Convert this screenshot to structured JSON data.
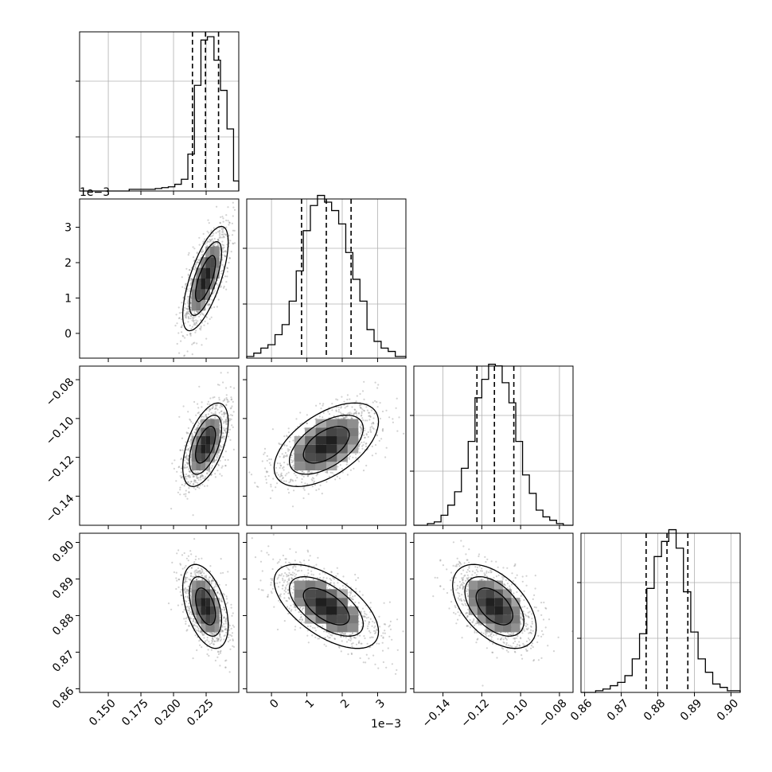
{
  "chart_data": {
    "type": "corner",
    "parameters": [
      {
        "ticks": [
          0.15,
          0.175,
          0.2,
          0.225
        ],
        "tick_labels": [
          "0.150",
          "0.175",
          "0.200",
          "0.225"
        ],
        "range": [
          0.128,
          0.25
        ],
        "quantiles": [
          0.2145,
          0.2245,
          0.2345
        ],
        "offset_text": ""
      },
      {
        "ticks": [
          0,
          1,
          2,
          3
        ],
        "tick_labels": [
          "0",
          "1",
          "2",
          "3"
        ],
        "range": [
          -0.7,
          3.8
        ],
        "quantiles": [
          0.85,
          1.55,
          2.25
        ],
        "offset_text": "1e−3"
      },
      {
        "ticks": [
          -0.14,
          -0.12,
          -0.1,
          -0.08
        ],
        "tick_labels": [
          "−0.14",
          "−0.12",
          "−0.10",
          "−0.08"
        ],
        "range": [
          -0.155,
          -0.073
        ],
        "quantiles": [
          -0.1225,
          -0.1135,
          -0.1035
        ],
        "offset_text": ""
      },
      {
        "ticks": [
          0.86,
          0.87,
          0.88,
          0.89,
          0.9
        ],
        "tick_labels": [
          "0.86",
          "0.87",
          "0.88",
          "0.89",
          "0.90"
        ],
        "range": [
          0.859,
          0.9025
        ],
        "quantiles": [
          0.8768,
          0.8825,
          0.8882
        ],
        "offset_text": ""
      }
    ],
    "histograms": [
      {
        "bins": [
          [
            0.128,
            0.132,
            0.0
          ],
          [
            0.132,
            0.137,
            0.0
          ],
          [
            0.137,
            0.142,
            0.0
          ],
          [
            0.142,
            0.147,
            0.0
          ],
          [
            0.147,
            0.152,
            0.0
          ],
          [
            0.152,
            0.156,
            0.0
          ],
          [
            0.156,
            0.161,
            0.0
          ],
          [
            0.161,
            0.166,
            0.0
          ],
          [
            0.166,
            0.171,
            0.01
          ],
          [
            0.171,
            0.176,
            0.01
          ],
          [
            0.176,
            0.181,
            0.01
          ],
          [
            0.181,
            0.186,
            0.01
          ],
          [
            0.186,
            0.191,
            0.015
          ],
          [
            0.191,
            0.196,
            0.02
          ],
          [
            0.196,
            0.201,
            0.025
          ],
          [
            0.201,
            0.206,
            0.04
          ],
          [
            0.206,
            0.211,
            0.07
          ],
          [
            0.211,
            0.216,
            0.22
          ],
          [
            0.216,
            0.221,
            0.63
          ],
          [
            0.221,
            0.226,
            0.9
          ],
          [
            0.226,
            0.231,
            0.92
          ],
          [
            0.231,
            0.236,
            0.78
          ],
          [
            0.236,
            0.241,
            0.6
          ],
          [
            0.241,
            0.246,
            0.37
          ],
          [
            0.246,
            0.25,
            0.06
          ]
        ]
      },
      {
        "bins": [
          [
            -0.7,
            -0.5,
            0.01
          ],
          [
            -0.5,
            -0.3,
            0.03
          ],
          [
            -0.3,
            -0.1,
            0.06
          ],
          [
            -0.1,
            0.1,
            0.08
          ],
          [
            0.1,
            0.3,
            0.14
          ],
          [
            0.3,
            0.5,
            0.2
          ],
          [
            0.5,
            0.7,
            0.34
          ],
          [
            0.7,
            0.9,
            0.52
          ],
          [
            0.9,
            1.1,
            0.76
          ],
          [
            1.1,
            1.3,
            0.91
          ],
          [
            1.3,
            1.5,
            0.97
          ],
          [
            1.5,
            1.7,
            0.93
          ],
          [
            1.7,
            1.9,
            0.88
          ],
          [
            1.9,
            2.1,
            0.8
          ],
          [
            2.1,
            2.3,
            0.63
          ],
          [
            2.3,
            2.5,
            0.47
          ],
          [
            2.5,
            2.7,
            0.34
          ],
          [
            2.7,
            2.9,
            0.17
          ],
          [
            2.9,
            3.1,
            0.1
          ],
          [
            3.1,
            3.3,
            0.06
          ],
          [
            3.3,
            3.5,
            0.04
          ],
          [
            3.5,
            3.8,
            0.01
          ]
        ]
      },
      {
        "bins": [
          [
            -0.155,
            -0.1515,
            0.0
          ],
          [
            -0.1515,
            -0.148,
            0.0
          ],
          [
            -0.148,
            -0.1445,
            0.01
          ],
          [
            -0.1445,
            -0.141,
            0.02
          ],
          [
            -0.141,
            -0.1375,
            0.06
          ],
          [
            -0.1375,
            -0.134,
            0.12
          ],
          [
            -0.134,
            -0.1305,
            0.2
          ],
          [
            -0.1305,
            -0.127,
            0.34
          ],
          [
            -0.127,
            -0.1235,
            0.5
          ],
          [
            -0.1235,
            -0.12,
            0.76
          ],
          [
            -0.12,
            -0.1165,
            0.87
          ],
          [
            -0.1165,
            -0.113,
            0.96
          ],
          [
            -0.113,
            -0.1095,
            0.95
          ],
          [
            -0.1095,
            -0.106,
            0.85
          ],
          [
            -0.106,
            -0.1025,
            0.73
          ],
          [
            -0.1025,
            -0.099,
            0.5
          ],
          [
            -0.099,
            -0.0955,
            0.3
          ],
          [
            -0.0955,
            -0.092,
            0.19
          ],
          [
            -0.092,
            -0.0885,
            0.09
          ],
          [
            -0.0885,
            -0.085,
            0.05
          ],
          [
            -0.085,
            -0.0815,
            0.03
          ],
          [
            -0.0815,
            -0.078,
            0.01
          ],
          [
            -0.078,
            -0.073,
            0.0
          ]
        ]
      },
      {
        "bins": [
          [
            0.859,
            0.861,
            0.0
          ],
          [
            0.861,
            0.863,
            0.0
          ],
          [
            0.863,
            0.865,
            0.01
          ],
          [
            0.865,
            0.867,
            0.02
          ],
          [
            0.867,
            0.869,
            0.04
          ],
          [
            0.869,
            0.871,
            0.06
          ],
          [
            0.871,
            0.873,
            0.1
          ],
          [
            0.873,
            0.875,
            0.2
          ],
          [
            0.875,
            0.877,
            0.35
          ],
          [
            0.877,
            0.879,
            0.62
          ],
          [
            0.879,
            0.881,
            0.81
          ],
          [
            0.881,
            0.883,
            0.9
          ],
          [
            0.883,
            0.885,
            0.97
          ],
          [
            0.885,
            0.887,
            0.86
          ],
          [
            0.887,
            0.889,
            0.6
          ],
          [
            0.889,
            0.891,
            0.36
          ],
          [
            0.891,
            0.893,
            0.2
          ],
          [
            0.893,
            0.895,
            0.12
          ],
          [
            0.895,
            0.897,
            0.05
          ],
          [
            0.897,
            0.899,
            0.03
          ],
          [
            0.899,
            0.9025,
            0.01
          ]
        ]
      }
    ],
    "pairs": [
      {
        "i": 1,
        "j": 0,
        "mean": [
          0.2245,
          1.55
        ],
        "std": [
          0.0085,
          0.72
        ],
        "rho": 0.7
      },
      {
        "i": 2,
        "j": 0,
        "mean": [
          0.2245,
          -0.1135
        ],
        "std": [
          0.0085,
          0.0105
        ],
        "rho": 0.55
      },
      {
        "i": 2,
        "j": 1,
        "mean": [
          1.55,
          -0.1135
        ],
        "std": [
          0.72,
          0.0105
        ],
        "rho": 0.55
      },
      {
        "i": 3,
        "j": 0,
        "mean": [
          0.2245,
          0.8825
        ],
        "std": [
          0.0085,
          0.0056
        ],
        "rho": -0.45
      },
      {
        "i": 3,
        "j": 1,
        "mean": [
          1.55,
          0.8825
        ],
        "std": [
          0.72,
          0.0056
        ],
        "rho": -0.6
      },
      {
        "i": 3,
        "j": 2,
        "mean": [
          -0.1135,
          0.8825
        ],
        "std": [
          0.0105,
          0.0056
        ],
        "rho": -0.5
      }
    ],
    "grid": true
  }
}
